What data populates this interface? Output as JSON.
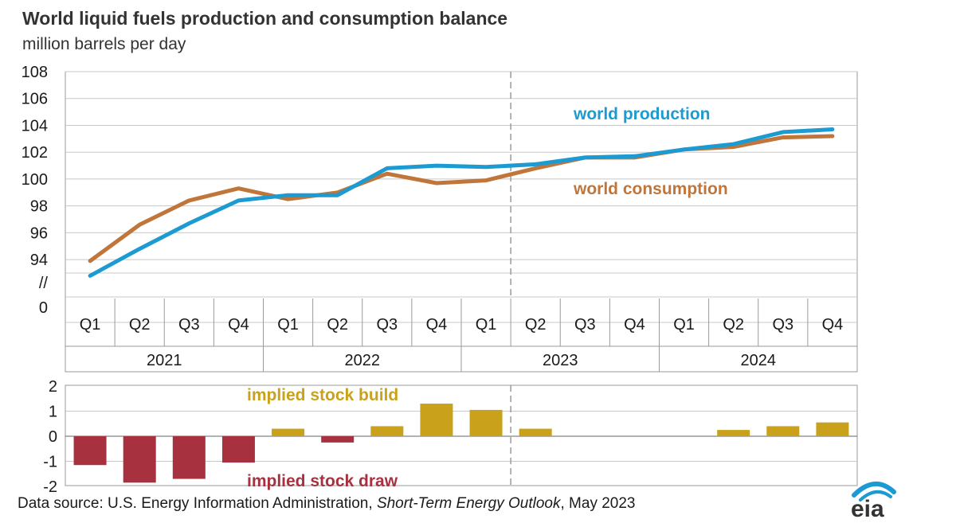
{
  "title": "World liquid fuels production and consumption balance",
  "subtitle": "million barrels per day",
  "source": {
    "prefix": "Data source: U.S. Energy Information Administration, ",
    "publication": "Short-Term Energy Outlook",
    "suffix": ", May 2023"
  },
  "logo_text": "eia",
  "colors": {
    "production": "#1b9bd1",
    "consumption": "#c0763a",
    "build": "#c9a11a",
    "draw": "#a8313f",
    "grid": "#c8c8c8",
    "axis": "#9a9a9a"
  },
  "chart_data": [
    {
      "type": "line",
      "categories": [
        "Q1",
        "Q2",
        "Q3",
        "Q4",
        "Q1",
        "Q2",
        "Q3",
        "Q4",
        "Q1",
        "Q2",
        "Q3",
        "Q4",
        "Q1",
        "Q2",
        "Q3",
        "Q4"
      ],
      "years": [
        "2021",
        "2022",
        "2023",
        "2024"
      ],
      "forecast_start_after": "2023 Q1",
      "ylim": [
        92,
        108
      ],
      "yticks": [
        "108",
        "106",
        "104",
        "102",
        "100",
        "98",
        "96",
        "94"
      ],
      "y_break_labels": [
        "//",
        "0"
      ],
      "grid": true,
      "series": [
        {
          "name": "world production",
          "values": [
            92.8,
            94.8,
            96.7,
            98.4,
            98.8,
            98.8,
            100.8,
            101.0,
            100.9,
            101.1,
            101.6,
            101.7,
            102.2,
            102.6,
            103.5,
            103.7
          ]
        },
        {
          "name": "world consumption",
          "values": [
            93.9,
            96.6,
            98.4,
            99.3,
            98.5,
            99.0,
            100.4,
            99.7,
            99.9,
            100.8,
            101.6,
            101.6,
            102.2,
            102.4,
            103.1,
            103.2
          ]
        }
      ]
    },
    {
      "type": "bar",
      "categories": [
        "2021 Q1",
        "2021 Q2",
        "2021 Q3",
        "2021 Q4",
        "2022 Q1",
        "2022 Q2",
        "2022 Q3",
        "2022 Q4",
        "2023 Q1",
        "2023 Q2",
        "2023 Q3",
        "2023 Q4",
        "2024 Q1",
        "2024 Q2",
        "2024 Q3",
        "2024 Q4"
      ],
      "values": [
        -1.15,
        -1.85,
        -1.7,
        -1.05,
        0.3,
        -0.25,
        0.4,
        1.3,
        1.05,
        0.3,
        0.0,
        0.0,
        0.0,
        0.25,
        0.4,
        0.55
      ],
      "ylim": [
        -2,
        2
      ],
      "yticks": [
        "2",
        "1",
        "0",
        "-1",
        "-2"
      ],
      "annotations": [
        "implied stock build",
        "implied stock draw"
      ]
    }
  ]
}
